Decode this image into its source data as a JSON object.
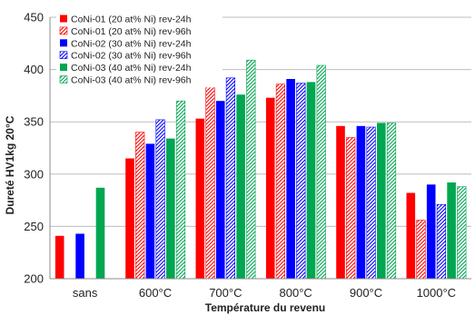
{
  "chart_data": {
    "type": "bar",
    "title": "",
    "xlabel": "Température du revenu",
    "ylabel": "Dureté HV1kg 20°C",
    "ylim": [
      200,
      450
    ],
    "yticks": [
      200,
      250,
      300,
      350,
      400,
      450
    ],
    "grid": true,
    "legend_position": "top-left",
    "categories": [
      "sans",
      "600°C",
      "700°C",
      "800°C",
      "900°C",
      "1000°C"
    ],
    "series": [
      {
        "name": "CoNi-01 (20 at% Ni) rev-24h",
        "color": "#ff0000",
        "pattern": "solid",
        "values": [
          241,
          315,
          353,
          373,
          346,
          282
        ]
      },
      {
        "name": "CoNi-01 (20 at% Ni) rev-96h",
        "color": "#ff0000",
        "pattern": "hatched",
        "values": [
          null,
          340,
          384,
          386,
          335,
          256
        ]
      },
      {
        "name": "CoNi-02 (30 at% Ni) rev-24h",
        "color": "#0000ff",
        "pattern": "solid",
        "values": [
          243,
          329,
          370,
          391,
          346,
          290
        ]
      },
      {
        "name": "CoNi-02 (30 at% Ni) rev-96h",
        "color": "#0000ff",
        "pattern": "hatched",
        "values": [
          null,
          352,
          392,
          387,
          345,
          271
        ]
      },
      {
        "name": "CoNi-03 (40 at% Ni) rev-24h",
        "color": "#00a651",
        "pattern": "solid",
        "values": [
          287,
          334,
          376,
          388,
          349,
          292
        ]
      },
      {
        "name": "CoNi-03 (40 at% Ni) rev-96h",
        "color": "#00a651",
        "pattern": "hatched",
        "values": [
          null,
          370,
          409,
          404,
          349,
          288
        ]
      }
    ]
  }
}
